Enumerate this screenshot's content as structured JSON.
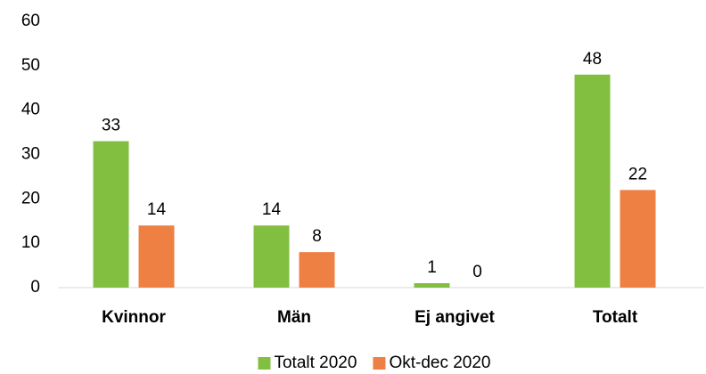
{
  "chart_data": {
    "type": "bar",
    "categories": [
      "Kvinnor",
      "Män",
      "Ej angivet",
      "Totalt"
    ],
    "series": [
      {
        "name": "Totalt 2020",
        "color": "#82bf40",
        "values": [
          33,
          14,
          1,
          48
        ]
      },
      {
        "name": "Okt-dec 2020",
        "color": "#ee8044",
        "values": [
          14,
          8,
          0,
          22
        ]
      }
    ],
    "ylim": [
      0,
      60
    ],
    "yticks": [
      0,
      10,
      20,
      30,
      40,
      50,
      60
    ],
    "grid": false,
    "legend": "bottom"
  }
}
